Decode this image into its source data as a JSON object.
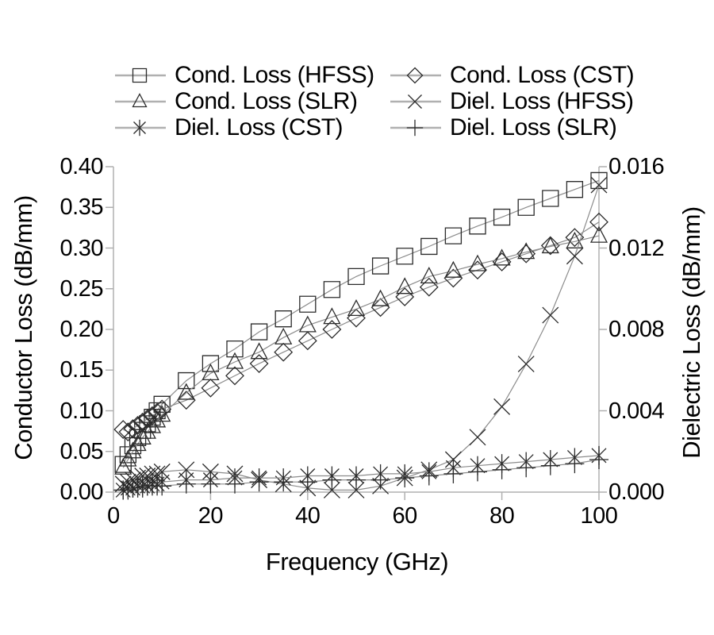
{
  "figure": {
    "background": "#ffffff"
  },
  "colors": {
    "axis_line": "#b0b0b0",
    "series_line": "#8c8c8c",
    "marker_stroke": "#2b2b2b",
    "legend_line": "#b0b0b0",
    "text": "#000000"
  },
  "chart_data": {
    "type": "line",
    "title": "",
    "xlabel": "Frequency (GHz)",
    "ylabel_left": "Conductor Loss (dB/mm)",
    "ylabel_right": "Dielectric Loss (dB/mm)",
    "xlim": [
      0,
      100
    ],
    "ylim_left": [
      0.0,
      0.4
    ],
    "ylim_right": [
      0.0,
      0.016
    ],
    "grid": false,
    "legend_position": "top",
    "x_ticks": [
      0,
      20,
      40,
      60,
      80,
      100
    ],
    "x_tick_labels": [
      "0",
      "20",
      "40",
      "60",
      "80",
      "100"
    ],
    "left_ticks": [
      0.0,
      0.05,
      0.1,
      0.15,
      0.2,
      0.25,
      0.3,
      0.35,
      0.4
    ],
    "left_tick_labels": [
      "0.00",
      "0.05",
      "0.10",
      "0.15",
      "0.20",
      "0.25",
      "0.30",
      "0.35",
      "0.40"
    ],
    "right_ticks": [
      0.0,
      0.004,
      0.008,
      0.012,
      0.016
    ],
    "right_tick_labels": [
      "0.000",
      "0.004",
      "0.008",
      "0.012",
      "0.016"
    ],
    "x": [
      2,
      3,
      4,
      5,
      6,
      7,
      8,
      9,
      10,
      15,
      20,
      25,
      30,
      35,
      40,
      45,
      50,
      55,
      60,
      65,
      70,
      75,
      80,
      85,
      90,
      95,
      100
    ],
    "series": [
      {
        "name": "Cond. Loss (HFSS)",
        "marker": "square",
        "axis": "left",
        "values": [
          0.034,
          0.046,
          0.057,
          0.067,
          0.076,
          0.084,
          0.092,
          0.1,
          0.108,
          0.137,
          0.158,
          0.176,
          0.197,
          0.213,
          0.231,
          0.249,
          0.265,
          0.278,
          0.29,
          0.302,
          0.315,
          0.327,
          0.338,
          0.35,
          0.361,
          0.372,
          0.383
        ]
      },
      {
        "name": "Cond. Loss (CST)",
        "marker": "diamond",
        "axis": "left",
        "values": [
          0.077,
          0.074,
          0.078,
          0.082,
          0.086,
          0.09,
          0.094,
          0.098,
          0.102,
          0.113,
          0.128,
          0.143,
          0.158,
          0.172,
          0.186,
          0.2,
          0.214,
          0.227,
          0.24,
          0.252,
          0.263,
          0.273,
          0.283,
          0.293,
          0.303,
          0.313,
          0.332
        ]
      },
      {
        "name": "Cond. Loss (SLR)",
        "marker": "triangle",
        "axis": "left",
        "values": [
          0.03,
          0.04,
          0.05,
          0.059,
          0.067,
          0.074,
          0.081,
          0.088,
          0.095,
          0.122,
          0.146,
          0.16,
          0.172,
          0.19,
          0.205,
          0.215,
          0.225,
          0.237,
          0.252,
          0.265,
          0.272,
          0.28,
          0.287,
          0.295,
          0.302,
          0.308,
          0.315
        ]
      },
      {
        "name": "Diel. Loss (HFSS)",
        "marker": "x",
        "axis": "right",
        "values": [
          0.0004,
          0.0005,
          0.0006,
          0.0007,
          0.0008,
          0.0008,
          0.0009,
          0.0009,
          0.001,
          0.0011,
          0.001,
          0.0009,
          0.0006,
          0.0004,
          0.0002,
          0.0001,
          0.0001,
          0.0003,
          0.0007,
          0.0011,
          0.0016,
          0.0027,
          0.0042,
          0.0063,
          0.0087,
          0.0116,
          0.0151
        ]
      },
      {
        "name": "Diel. Loss (CST)",
        "marker": "asterisk",
        "axis": "right",
        "values": [
          0.0001,
          0.0002,
          0.0002,
          0.0003,
          0.0003,
          0.0003,
          0.0004,
          0.0004,
          0.0005,
          0.0006,
          0.0006,
          0.0007,
          0.0007,
          0.0007,
          0.0008,
          0.0008,
          0.0008,
          0.0009,
          0.0009,
          0.001,
          0.0012,
          0.0013,
          0.0014,
          0.0015,
          0.0016,
          0.0017,
          0.0018
        ]
      },
      {
        "name": "Diel. Loss (SLR)",
        "marker": "plus",
        "axis": "right",
        "values": [
          0.0001,
          0.0001,
          0.0002,
          0.0002,
          0.0002,
          0.0003,
          0.0003,
          0.0003,
          0.0003,
          0.0004,
          0.0004,
          0.0004,
          0.0005,
          0.0005,
          0.0005,
          0.0006,
          0.0006,
          0.0006,
          0.0007,
          0.0008,
          0.0009,
          0.001,
          0.0011,
          0.0012,
          0.0013,
          0.0014,
          0.0016
        ]
      }
    ]
  }
}
